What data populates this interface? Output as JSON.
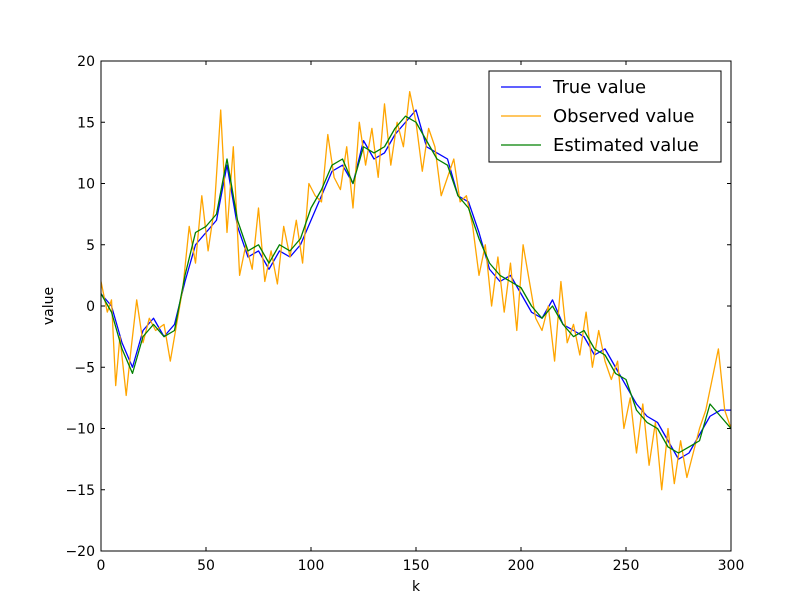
{
  "chart_data": {
    "type": "line",
    "title": "",
    "xlabel": "k",
    "ylabel": "value",
    "xlim": [
      0,
      300
    ],
    "ylim": [
      -20,
      20
    ],
    "xticks": [
      0,
      50,
      100,
      150,
      200,
      250,
      300
    ],
    "yticks": [
      -20,
      -15,
      -10,
      -5,
      0,
      5,
      10,
      15,
      20
    ],
    "grid": false,
    "legend_position": "top-right",
    "series": [
      {
        "name": "True value",
        "color": "#0000ff",
        "x": [
          0,
          5,
          10,
          15,
          20,
          25,
          30,
          35,
          40,
          45,
          50,
          55,
          60,
          65,
          70,
          75,
          80,
          85,
          90,
          95,
          100,
          105,
          110,
          115,
          120,
          125,
          130,
          135,
          140,
          145,
          150,
          155,
          160,
          165,
          170,
          175,
          180,
          185,
          190,
          195,
          200,
          205,
          210,
          215,
          220,
          225,
          230,
          235,
          240,
          245,
          250,
          255,
          260,
          265,
          270,
          275,
          280,
          285,
          290,
          295,
          300
        ],
        "values": [
          1.0,
          0.0,
          -3.0,
          -5.0,
          -2.0,
          -1.0,
          -2.5,
          -1.5,
          2.0,
          5.0,
          6.0,
          7.0,
          11.5,
          6.5,
          4.0,
          4.5,
          3.0,
          4.5,
          4.0,
          5.0,
          7.0,
          9.0,
          11.0,
          11.5,
          10.0,
          13.5,
          12.0,
          12.5,
          14.0,
          15.0,
          16.0,
          13.0,
          12.5,
          12.0,
          9.0,
          8.5,
          6.0,
          3.0,
          2.0,
          2.5,
          1.0,
          -0.5,
          -1.0,
          0.5,
          -1.5,
          -2.0,
          -2.5,
          -4.0,
          -3.5,
          -5.0,
          -6.5,
          -8.0,
          -9.0,
          -9.5,
          -11.0,
          -12.5,
          -12.0,
          -10.5,
          -9.0,
          -8.5,
          -8.5
        ]
      },
      {
        "name": "Observed value",
        "color": "#ffa500",
        "x": [
          0,
          3,
          5,
          7,
          9,
          12,
          14,
          17,
          20,
          23,
          26,
          30,
          33,
          36,
          39,
          42,
          45,
          48,
          51,
          54,
          57,
          60,
          63,
          66,
          69,
          72,
          75,
          78,
          81,
          84,
          87,
          90,
          93,
          96,
          99,
          102,
          105,
          108,
          111,
          114,
          117,
          120,
          123,
          126,
          129,
          132,
          135,
          138,
          141,
          144,
          147,
          150,
          153,
          156,
          159,
          162,
          165,
          168,
          171,
          174,
          177,
          180,
          183,
          186,
          189,
          192,
          195,
          198,
          201,
          204,
          207,
          210,
          213,
          216,
          219,
          222,
          225,
          228,
          231,
          234,
          237,
          240,
          243,
          246,
          249,
          252,
          255,
          258,
          261,
          264,
          267,
          270,
          273,
          276,
          279,
          282,
          285,
          288,
          291,
          294,
          297,
          300
        ],
        "values": [
          2.0,
          -0.5,
          0.5,
          -6.5,
          -2.5,
          -7.3,
          -4.0,
          0.5,
          -3.0,
          -1.0,
          -2.0,
          -1.5,
          -4.5,
          -1.5,
          1.5,
          6.5,
          3.5,
          9.0,
          4.5,
          8.0,
          16.0,
          6.0,
          13.0,
          2.5,
          5.0,
          3.0,
          8.0,
          2.0,
          4.5,
          1.8,
          6.5,
          4.0,
          7.0,
          3.5,
          10.0,
          9.0,
          8.5,
          14.0,
          10.5,
          9.5,
          13.0,
          8.0,
          15.0,
          11.5,
          14.5,
          10.5,
          16.5,
          11.5,
          15.0,
          13.0,
          17.5,
          15.0,
          11.0,
          14.5,
          13.0,
          9.0,
          10.5,
          12.0,
          8.5,
          9.0,
          6.5,
          2.5,
          5.0,
          0.0,
          4.0,
          -0.5,
          3.5,
          -2.0,
          5.0,
          2.0,
          -1.0,
          -2.0,
          0.0,
          -4.5,
          2.0,
          -3.0,
          -1.5,
          -4.0,
          -0.5,
          -5.0,
          -2.0,
          -4.5,
          -6.0,
          -4.5,
          -10.0,
          -7.5,
          -12.0,
          -8.0,
          -13.0,
          -9.5,
          -15.0,
          -10.0,
          -14.5,
          -11.0,
          -14.0,
          -12.0,
          -10.0,
          -8.5,
          -6.0,
          -3.5,
          -8.5,
          -10.0
        ]
      },
      {
        "name": "Estimated value",
        "color": "#008000",
        "x": [
          0,
          5,
          10,
          15,
          20,
          25,
          30,
          35,
          40,
          45,
          50,
          55,
          60,
          65,
          70,
          75,
          80,
          85,
          90,
          95,
          100,
          105,
          110,
          115,
          120,
          125,
          130,
          135,
          140,
          145,
          150,
          155,
          160,
          165,
          170,
          175,
          180,
          185,
          190,
          195,
          200,
          205,
          210,
          215,
          220,
          225,
          230,
          235,
          240,
          245,
          250,
          255,
          260,
          265,
          270,
          275,
          280,
          285,
          290,
          295,
          300
        ],
        "values": [
          1.0,
          -0.5,
          -3.5,
          -5.5,
          -2.5,
          -1.5,
          -2.5,
          -2.0,
          2.5,
          6.0,
          6.5,
          7.5,
          12.0,
          7.0,
          4.5,
          5.0,
          3.5,
          5.0,
          4.5,
          5.5,
          8.0,
          9.5,
          11.5,
          12.0,
          10.0,
          13.0,
          12.5,
          13.0,
          14.5,
          15.5,
          15.0,
          13.5,
          12.0,
          11.5,
          9.0,
          8.0,
          5.5,
          3.5,
          2.5,
          2.0,
          1.5,
          0.0,
          -1.0,
          0.0,
          -1.5,
          -2.5,
          -2.0,
          -3.5,
          -4.0,
          -5.5,
          -6.0,
          -8.5,
          -9.5,
          -10.0,
          -11.5,
          -12.0,
          -11.5,
          -11.0,
          -8.0,
          -9.0,
          -10.0
        ]
      }
    ]
  }
}
